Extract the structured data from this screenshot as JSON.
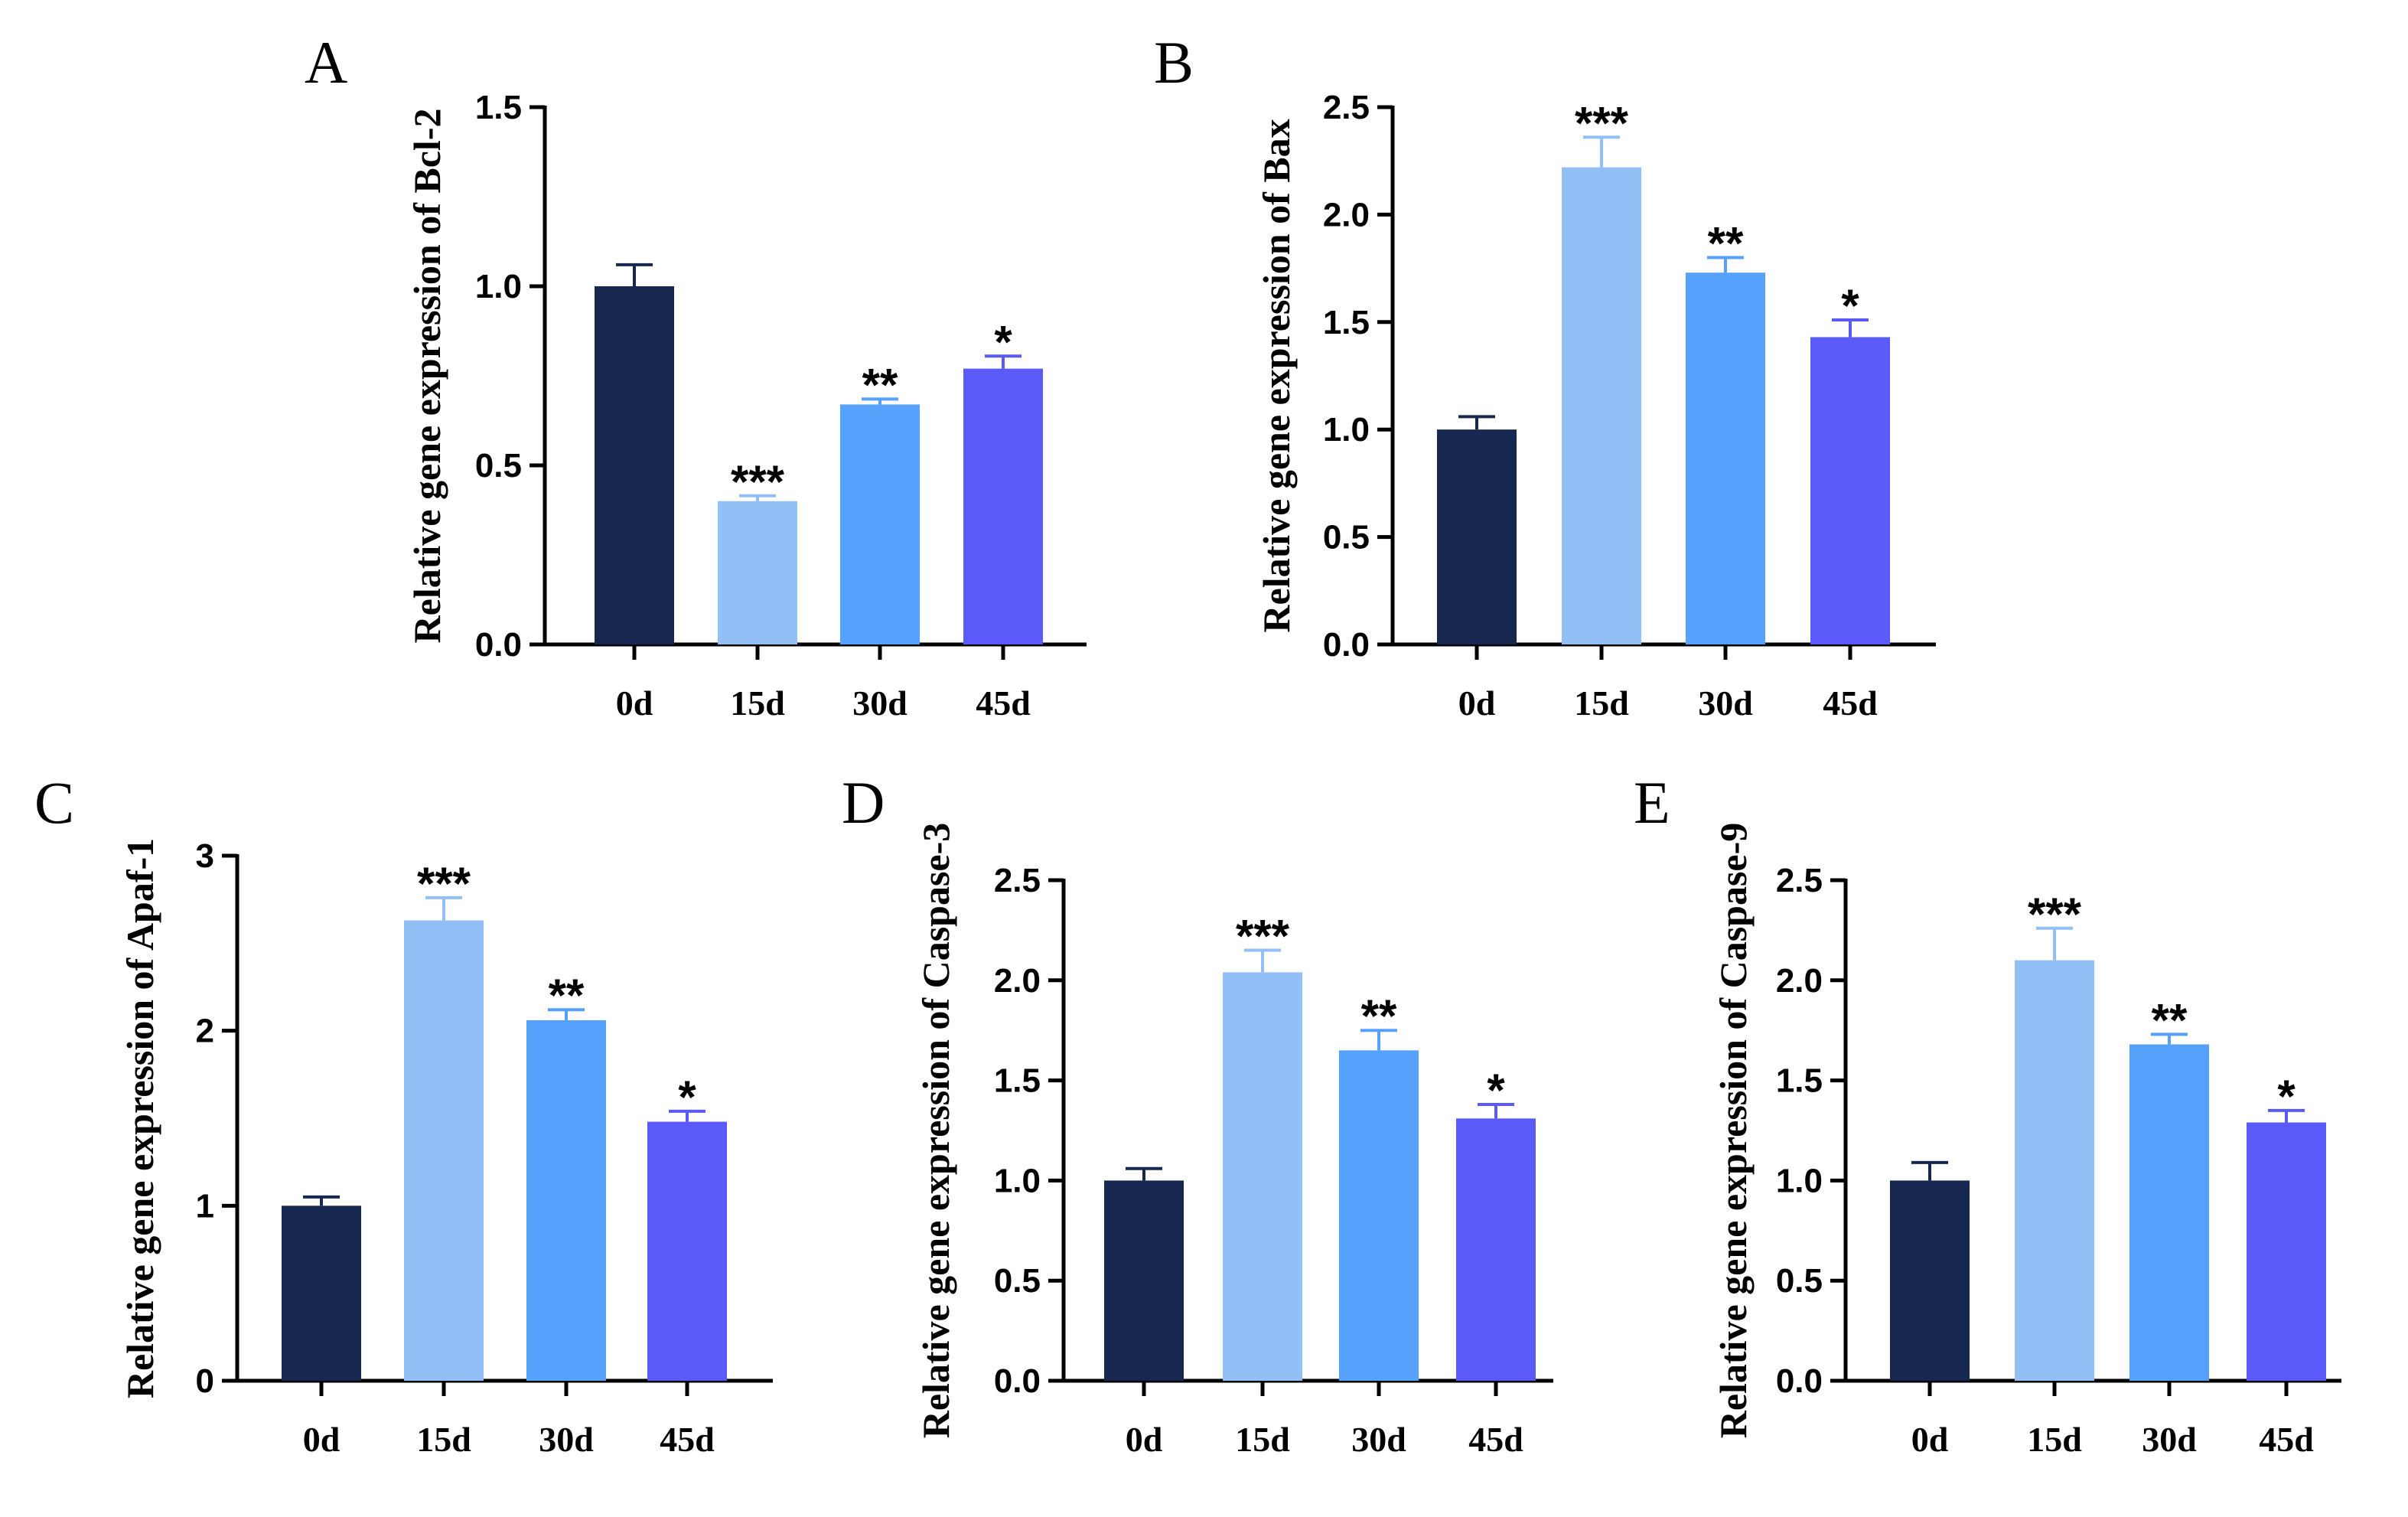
{
  "chart_data": [
    {
      "panel": "A",
      "type": "bar",
      "categories": [
        "0d",
        "15d",
        "30d",
        "45d"
      ],
      "values": [
        1.0,
        0.4,
        0.67,
        0.77
      ],
      "errors": [
        0.06,
        0.015,
        0.015,
        0.035
      ],
      "significance": [
        "",
        "***",
        "**",
        "*"
      ],
      "ylabel": "Relative gene expression of Bcl-2",
      "ylim": [
        0,
        1.5
      ],
      "yticks": [
        0.0,
        0.5,
        1.0,
        1.5
      ],
      "ytick_labels": [
        "0.0",
        "0.5",
        "1.0",
        "1.5"
      ]
    },
    {
      "panel": "B",
      "type": "bar",
      "categories": [
        "0d",
        "15d",
        "30d",
        "45d"
      ],
      "values": [
        1.0,
        2.22,
        1.73,
        1.43
      ],
      "errors": [
        0.06,
        0.14,
        0.07,
        0.08
      ],
      "significance": [
        "",
        "***",
        "**",
        "*"
      ],
      "ylabel": "Relative gene expression of Bax",
      "ylim": [
        0,
        2.5
      ],
      "yticks": [
        0.0,
        0.5,
        1.0,
        1.5,
        2.0,
        2.5
      ],
      "ytick_labels": [
        "0.0",
        "0.5",
        "1.0",
        "1.5",
        "2.0",
        "2.5"
      ]
    },
    {
      "panel": "C",
      "type": "bar",
      "categories": [
        "0d",
        "15d",
        "30d",
        "45d"
      ],
      "values": [
        1.0,
        2.63,
        2.06,
        1.48
      ],
      "errors": [
        0.05,
        0.13,
        0.06,
        0.06
      ],
      "significance": [
        "",
        "***",
        "**",
        "*"
      ],
      "ylabel": "Relative gene expression of Apaf-1",
      "ylim": [
        0,
        3
      ],
      "yticks": [
        0,
        1,
        2,
        3
      ],
      "ytick_labels": [
        "0",
        "1",
        "2",
        "3"
      ]
    },
    {
      "panel": "D",
      "type": "bar",
      "categories": [
        "0d",
        "15d",
        "30d",
        "45d"
      ],
      "values": [
        1.0,
        2.04,
        1.65,
        1.31
      ],
      "errors": [
        0.06,
        0.11,
        0.1,
        0.07
      ],
      "significance": [
        "",
        "***",
        "**",
        "*"
      ],
      "ylabel": "Relative gene expression of Caspase-3",
      "ylim": [
        0,
        2.5
      ],
      "yticks": [
        0.0,
        0.5,
        1.0,
        1.5,
        2.0,
        2.5
      ],
      "ytick_labels": [
        "0.0",
        "0.5",
        "1.0",
        "1.5",
        "2.0",
        "2.5"
      ]
    },
    {
      "panel": "E",
      "type": "bar",
      "categories": [
        "0d",
        "15d",
        "30d",
        "45d"
      ],
      "values": [
        1.0,
        2.1,
        1.68,
        1.29
      ],
      "errors": [
        0.09,
        0.16,
        0.05,
        0.06
      ],
      "significance": [
        "",
        "***",
        "**",
        "*"
      ],
      "ylabel": "Relative gene expression of Caspase-9",
      "ylim": [
        0,
        2.5
      ],
      "yticks": [
        0.0,
        0.5,
        1.0,
        1.5,
        2.0,
        2.5
      ],
      "ytick_labels": [
        "0.0",
        "0.5",
        "1.0",
        "1.5",
        "2.0",
        "2.5"
      ]
    }
  ],
  "colors": {
    "bars": [
      "#16284f",
      "#93bff7",
      "#55a1fb",
      "#5a5af9"
    ]
  }
}
